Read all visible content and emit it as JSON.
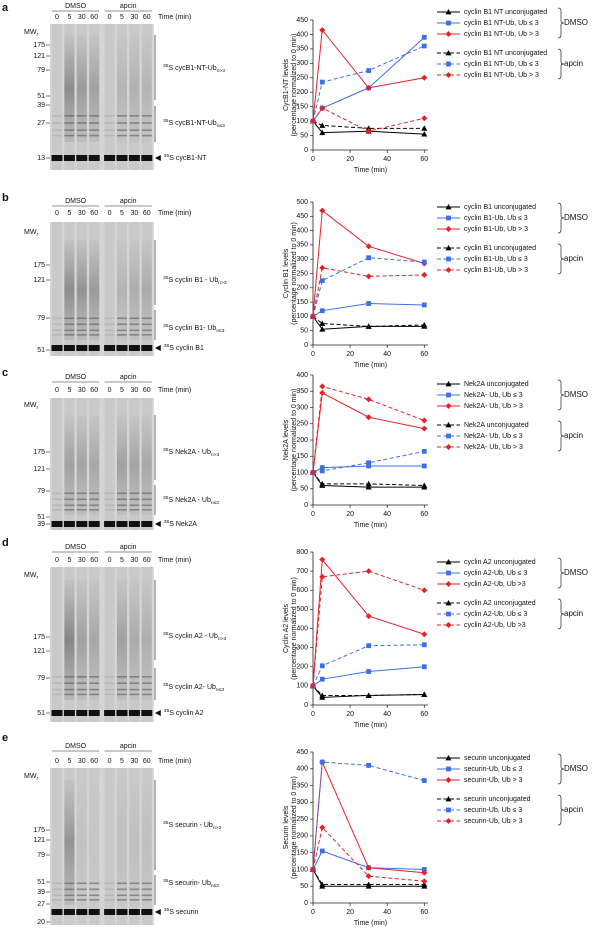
{
  "gels": [
    {
      "label": "a",
      "headers": [
        "DMSO",
        "apcin"
      ],
      "lanes": [
        "0",
        "5",
        "30",
        "60",
        "0",
        "5",
        "30",
        "60"
      ],
      "time_label": "Time (min)",
      "mw": {
        "text": "MW",
        "sub": "r"
      },
      "markers": [
        175,
        121,
        79,
        51,
        39,
        27,
        13
      ],
      "annotations": [
        {
          "sup": "35",
          "text": "S cycB1-NT-Ub",
          "sub": "n>3"
        },
        {
          "sup": "35",
          "text": "S cycB1-NT-Ub",
          "sub": "n≤3"
        },
        {
          "sup": "35",
          "text": "S cycB1-NT"
        }
      ]
    },
    {
      "label": "b",
      "headers": [
        "DMSO",
        "apcin"
      ],
      "lanes": [
        "0",
        "5",
        "30",
        "60",
        "0",
        "5",
        "30",
        "60"
      ],
      "time_label": "Time (min)",
      "mw": {
        "text": "MW",
        "sub": "r"
      },
      "markers": [
        175,
        121,
        79,
        51
      ],
      "annotations": [
        {
          "sup": "35",
          "text": "S cyclin B1 - Ub",
          "sub": "n>3"
        },
        {
          "sup": "35",
          "text": "S cyclin B1- Ub",
          "sub": "n≤3"
        },
        {
          "sup": "35",
          "text": "S cyclin B1"
        }
      ]
    },
    {
      "label": "c",
      "headers": [
        "DMSO",
        "apcin"
      ],
      "lanes": [
        "0",
        "5",
        "30",
        "60",
        "0",
        "5",
        "30",
        "60"
      ],
      "time_label": "Time (min)",
      "mw": {
        "text": "MW",
        "sub": "r"
      },
      "markers": [
        175,
        121,
        79,
        51,
        39
      ],
      "annotations": [
        {
          "sup": "35",
          "text": "S Nek2A - Ub",
          "sub": "n>3"
        },
        {
          "sup": "35",
          "text": "S Nek2A - Ub",
          "sub": "n≤3"
        },
        {
          "sup": "35",
          "text": "S Nek2A"
        }
      ]
    },
    {
      "label": "d",
      "headers": [
        "DMSO",
        "apcin"
      ],
      "lanes": [
        "0",
        "5",
        "30",
        "60",
        "0",
        "5",
        "30",
        "60"
      ],
      "time_label": "Time (min)",
      "mw": {
        "text": "MW",
        "sub": "r"
      },
      "markers": [
        175,
        121,
        79,
        51
      ],
      "annotations": [
        {
          "sup": "35",
          "text": "S cyclin A2 - Ub",
          "sub": "n>3"
        },
        {
          "sup": "35",
          "text": "S cyclin A2- Ub",
          "sub": "n≤3"
        },
        {
          "sup": "35",
          "text": "S cyclin A2"
        }
      ]
    },
    {
      "label": "e",
      "headers": [
        "DMSO",
        "apcin"
      ],
      "lanes": [
        "0",
        "5",
        "30",
        "60",
        "0",
        "5",
        "30",
        "60"
      ],
      "time_label": "Time (min)",
      "mw": {
        "text": "MW",
        "sub": "r"
      },
      "markers": [
        175,
        121,
        79,
        51,
        39,
        27,
        20
      ],
      "annotations": [
        {
          "sup": "35",
          "text": "S securin - Ub",
          "sub": "n>3"
        },
        {
          "sup": "35",
          "text": "S securin- Ub",
          "sub": "n≤3"
        },
        {
          "sup": "35",
          "text": "S securin"
        }
      ]
    }
  ],
  "chart_data": [
    {
      "type": "line",
      "ylabel": [
        "CycB1-NT levels",
        "(percentage normalized to 0 min)"
      ],
      "xlabel": "Time (min)",
      "x": [
        0,
        5,
        30,
        60
      ],
      "xlim": [
        0,
        62
      ],
      "xticks": [
        0,
        20,
        40,
        60
      ],
      "ylim": [
        0,
        450
      ],
      "yticks": [
        0,
        50,
        100,
        150,
        200,
        250,
        300,
        350,
        400,
        450
      ],
      "legend_groups": [
        "DMSO",
        "apcin"
      ],
      "series": [
        {
          "name": "cyclin B1 NT unconjugated",
          "color": "#000000",
          "marker": "triangle",
          "dash": false,
          "values": [
            100,
            60,
            65,
            55
          ]
        },
        {
          "name": "cyclin B1 NT-Ub, Ub ≤ 3",
          "color": "#3d6fe8",
          "marker": "square",
          "dash": false,
          "values": [
            100,
            145,
            215,
            390
          ]
        },
        {
          "name": "cyclin B1 NT-Ub, Ub > 3",
          "color": "#e8202a",
          "marker": "diamond",
          "dash": false,
          "values": [
            100,
            415,
            215,
            250
          ]
        },
        {
          "name": "cyclin B1 NT unconjugated",
          "color": "#000000",
          "marker": "triangle",
          "dash": true,
          "values": [
            100,
            85,
            75,
            75
          ]
        },
        {
          "name": "cyclin B1 NT-Ub, Ub ≤ 3",
          "color": "#3d6fe8",
          "marker": "square",
          "dash": true,
          "values": [
            100,
            235,
            275,
            360
          ]
        },
        {
          "name": "cyclin B1 NT-Ub, Ub > 3",
          "color": "#e8202a",
          "marker": "diamond",
          "dash": true,
          "values": [
            100,
            145,
            65,
            110
          ]
        }
      ]
    },
    {
      "type": "line",
      "ylabel": [
        "Cyclin B1 levels",
        "(percentage normalized to 0 min)"
      ],
      "xlabel": "Time (min)",
      "x": [
        0,
        5,
        30,
        60
      ],
      "xlim": [
        0,
        62
      ],
      "xticks": [
        0,
        20,
        40,
        60
      ],
      "ylim": [
        0,
        500
      ],
      "yticks": [
        0,
        50,
        100,
        150,
        200,
        250,
        300,
        350,
        400,
        450,
        500
      ],
      "legend_groups": [
        "DMSO",
        "apcin"
      ],
      "series": [
        {
          "name": "cyclin B1 unconjugated",
          "color": "#000000",
          "marker": "triangle",
          "dash": false,
          "values": [
            100,
            55,
            65,
            65
          ]
        },
        {
          "name": "cyclin B1-Ub, Ub ≤ 3",
          "color": "#3d6fe8",
          "marker": "square",
          "dash": false,
          "values": [
            100,
            120,
            145,
            140
          ]
        },
        {
          "name": "cyclin B1-Ub, Ub > 3",
          "color": "#e8202a",
          "marker": "diamond",
          "dash": false,
          "values": [
            100,
            470,
            345,
            285
          ]
        },
        {
          "name": "cyclin B1 unconjugated",
          "color": "#000000",
          "marker": "triangle",
          "dash": true,
          "values": [
            100,
            75,
            65,
            70
          ]
        },
        {
          "name": "cyclin B1-Ub, Ub ≤ 3",
          "color": "#3d6fe8",
          "marker": "square",
          "dash": true,
          "values": [
            100,
            225,
            305,
            290
          ]
        },
        {
          "name": "cyclin B1-Ub, Ub > 3",
          "color": "#e8202a",
          "marker": "diamond",
          "dash": true,
          "values": [
            100,
            270,
            240,
            245
          ]
        }
      ]
    },
    {
      "type": "line",
      "ylabel": [
        "Nek2A levels",
        "(percentage normalized to 0 min)"
      ],
      "xlabel": "Time (min)",
      "x": [
        0,
        5,
        30,
        60
      ],
      "xlim": [
        0,
        62
      ],
      "xticks": [
        0,
        20,
        40,
        60
      ],
      "ylim": [
        0,
        400
      ],
      "yticks": [
        0,
        50,
        100,
        150,
        200,
        250,
        300,
        350,
        400
      ],
      "legend_groups": [
        "DMSO",
        "apcin"
      ],
      "series": [
        {
          "name": "Nek2A unconjugated",
          "color": "#000000",
          "marker": "triangle",
          "dash": false,
          "values": [
            100,
            60,
            55,
            55
          ]
        },
        {
          "name": "Nek2A- Ub, Ub ≤ 3",
          "color": "#3d6fe8",
          "marker": "square",
          "dash": false,
          "values": [
            100,
            115,
            120,
            120
          ]
        },
        {
          "name": "Nek2A- Ub, Ub > 3",
          "color": "#e8202a",
          "marker": "diamond",
          "dash": false,
          "values": [
            100,
            345,
            270,
            235
          ]
        },
        {
          "name": "Nek2A unconjugated",
          "color": "#000000",
          "marker": "triangle",
          "dash": true,
          "values": [
            100,
            65,
            65,
            60
          ]
        },
        {
          "name": "Nek2A- Ub, Ub ≤ 3",
          "color": "#3d6fe8",
          "marker": "square",
          "dash": true,
          "values": [
            100,
            105,
            130,
            165
          ]
        },
        {
          "name": "Nek2A- Ub, Ub > 3",
          "color": "#e8202a",
          "marker": "diamond",
          "dash": true,
          "values": [
            100,
            365,
            325,
            260
          ]
        }
      ]
    },
    {
      "type": "line",
      "ylabel": [
        "Cyclin A2 levels",
        "(percentage normalized to 0 min)"
      ],
      "xlabel": "Time (min)",
      "x": [
        0,
        5,
        30,
        60
      ],
      "xlim": [
        0,
        62
      ],
      "xticks": [
        0,
        20,
        40,
        60
      ],
      "ylim": [
        0,
        800
      ],
      "yticks": [
        0,
        100,
        200,
        300,
        400,
        500,
        600,
        700,
        800
      ],
      "legend_groups": [
        "DMSO",
        "apcin"
      ],
      "series": [
        {
          "name": "cyclin A2 unconjugated",
          "color": "#000000",
          "marker": "triangle",
          "dash": false,
          "values": [
            100,
            40,
            50,
            55
          ]
        },
        {
          "name": "cyclin A2-Ub, Ub ≤ 3",
          "color": "#3d6fe8",
          "marker": "square",
          "dash": false,
          "values": [
            100,
            135,
            175,
            200
          ]
        },
        {
          "name": "cyclin A2-Ub, Ub >3",
          "color": "#e8202a",
          "marker": "diamond",
          "dash": false,
          "values": [
            100,
            760,
            465,
            370
          ]
        },
        {
          "name": "cyclin A2 unconjugated",
          "color": "#000000",
          "marker": "triangle",
          "dash": true,
          "values": [
            100,
            50,
            50,
            55
          ]
        },
        {
          "name": "cyclin A2-Ub, Ub ≤ 3",
          "color": "#3d6fe8",
          "marker": "square",
          "dash": true,
          "values": [
            100,
            205,
            310,
            315
          ]
        },
        {
          "name": "cyclin A2-Ub,  Ub >3",
          "color": "#e8202a",
          "marker": "diamond",
          "dash": true,
          "values": [
            100,
            670,
            700,
            600
          ]
        }
      ]
    },
    {
      "type": "line",
      "ylabel": [
        "Securin levels",
        "(percentage normalized to 0 min)"
      ],
      "xlabel": "Time (min)",
      "x": [
        0,
        5,
        30,
        60
      ],
      "xlim": [
        0,
        62
      ],
      "xticks": [
        0,
        20,
        40,
        60
      ],
      "ylim": [
        0,
        450
      ],
      "yticks": [
        0,
        50,
        100,
        150,
        200,
        250,
        300,
        350,
        400,
        450
      ],
      "legend_groups": [
        "DMSO",
        "apcin"
      ],
      "series": [
        {
          "name": "securin unconjugated",
          "color": "#000000",
          "marker": "triangle",
          "dash": false,
          "values": [
            100,
            50,
            50,
            50
          ]
        },
        {
          "name": "securin-Ub, Ub ≤ 3",
          "color": "#3d6fe8",
          "marker": "square",
          "dash": false,
          "values": [
            100,
            155,
            105,
            100
          ]
        },
        {
          "name": "securin-Ub, Ub > 3",
          "color": "#e8202a",
          "marker": "diamond",
          "dash": false,
          "values": [
            100,
            420,
            105,
            90
          ]
        },
        {
          "name": "securin unconjugated",
          "color": "#000000",
          "marker": "triangle",
          "dash": true,
          "values": [
            100,
            55,
            55,
            55
          ]
        },
        {
          "name": "securin-Ub, Ub ≤ 3",
          "color": "#3d6fe8",
          "marker": "square",
          "dash": true,
          "values": [
            100,
            420,
            410,
            365
          ]
        },
        {
          "name": "securin-Ub, Ub > 3",
          "color": "#e8202a",
          "marker": "diamond",
          "dash": true,
          "values": [
            100,
            225,
            80,
            65
          ]
        }
      ]
    }
  ]
}
